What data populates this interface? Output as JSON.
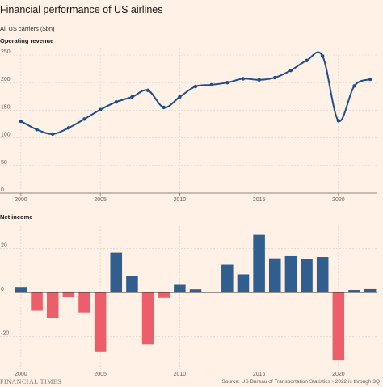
{
  "header": {
    "title": "Financial performance of US airlines",
    "subtitle": "All US carriers ($bn)"
  },
  "footer": {
    "brand": "FINANCIAL TIMES",
    "source": "Source: US Bureau of Transportation Statistics • 2022 is through 3Q"
  },
  "colors": {
    "line": "#1d4e89",
    "positive": "#2f5e8f",
    "negative": "#eb5e6a",
    "grid": "#d9cdc1"
  },
  "chart_data": [
    {
      "type": "line",
      "title": "Operating revenue",
      "x": [
        2000,
        2001,
        2002,
        2003,
        2004,
        2005,
        2006,
        2007,
        2008,
        2009,
        2010,
        2011,
        2012,
        2013,
        2014,
        2015,
        2016,
        2017,
        2018,
        2019,
        2020,
        2021,
        2022
      ],
      "series": [
        {
          "values": [
            130,
            115,
            107,
            118,
            134,
            151,
            165,
            174,
            186,
            155,
            174,
            193,
            196,
            200,
            207,
            205,
            209,
            222,
            240,
            248,
            131,
            194,
            206
          ]
        }
      ],
      "ylim": [
        0,
        250
      ],
      "yticks": [
        0,
        50,
        100,
        150,
        200,
        250
      ],
      "xticks": [
        2000,
        2005,
        2010,
        2015,
        2020
      ],
      "xlim": [
        1999.7,
        2022.4
      ],
      "grid": true
    },
    {
      "type": "bar",
      "title": "Net income",
      "x": [
        2000,
        2001,
        2002,
        2003,
        2004,
        2005,
        2006,
        2007,
        2008,
        2009,
        2010,
        2011,
        2012,
        2013,
        2014,
        2015,
        2016,
        2017,
        2018,
        2019,
        2020,
        2021,
        2022
      ],
      "series": [
        {
          "values": [
            2.5,
            -8.3,
            -11.5,
            -2,
            -9.1,
            -27.2,
            18.2,
            7.6,
            -23.7,
            -2.5,
            3.5,
            1.4,
            0.2,
            12.7,
            8.3,
            26.3,
            15.6,
            16.6,
            15.3,
            16.2,
            -31,
            1.1,
            1.5
          ]
        }
      ],
      "ylim": [
        -35,
        28
      ],
      "yticks": [
        -20,
        0,
        20
      ],
      "ytick_labels": [
        "-20",
        "0",
        "20"
      ],
      "xticks": [
        2000,
        2005,
        2010,
        2015,
        2020
      ],
      "xlim": [
        1999.7,
        2022.4
      ],
      "grid": true
    }
  ]
}
